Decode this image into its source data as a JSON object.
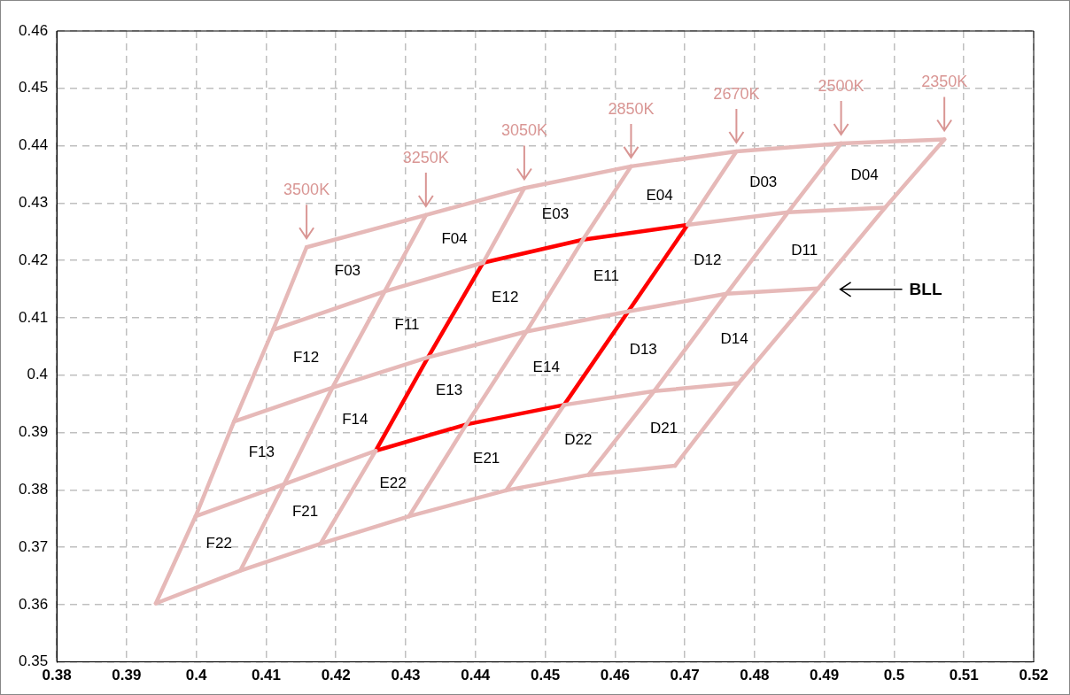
{
  "chart_data": {
    "type": "line",
    "xlim": [
      0.38,
      0.52
    ],
    "ylim": [
      0.35,
      0.46
    ],
    "xticks": [
      0.38,
      0.39,
      0.4,
      0.41,
      0.42,
      0.43,
      0.44,
      0.45,
      0.46,
      0.47,
      0.48,
      0.49,
      0.5,
      0.51,
      0.52
    ],
    "yticks": [
      0.35,
      0.36,
      0.37,
      0.38,
      0.39,
      0.4,
      0.41,
      0.42,
      0.43,
      0.44,
      0.45,
      0.46
    ],
    "grid": true,
    "legend": false,
    "marker": "none",
    "line_style": "solid",
    "series": [
      {
        "color": "#e6b9b8",
        "x": [
          0.4158,
          0.4329,
          0.447,
          0.4623,
          0.4774,
          0.4924,
          0.5072
        ],
        "values": [
          0.4223,
          0.4279,
          0.4326,
          0.4364,
          0.439,
          0.4404,
          0.4411
        ]
      },
      {
        "color": "#e6b9b8",
        "x": [
          0.411,
          0.427,
          0.4411,
          0.4554,
          0.4704,
          0.4848,
          0.4987
        ],
        "values": [
          0.4079,
          0.4146,
          0.4196,
          null,
          0.4262,
          0.4284,
          0.4292
        ]
      },
      {
        "color": "#e6b9b8",
        "x": [
          0.4054,
          0.4195,
          0.4332,
          0.4473,
          0.4619,
          0.476,
          0.4891
        ],
        "values": [
          0.3919,
          0.3978,
          0.4031,
          0.4076,
          0.4111,
          0.4142,
          0.4151
        ]
      },
      {
        "color": "#e6b9b8",
        "x": [
          0.3999,
          0.4126,
          0.4257,
          0.4387,
          0.4527,
          0.4656,
          0.4777
        ],
        "values": [
          0.3754,
          0.381,
          0.3868,
          null,
          0.3948,
          0.3972,
          0.3986
        ]
      },
      {
        "color": "#e6b9b8",
        "x": [
          0.3942,
          0.4063,
          0.4178,
          0.4305,
          0.4444,
          0.4562,
          0.4686
        ],
        "values": [
          0.3602,
          0.3659,
          0.3706,
          0.3754,
          0.3799,
          0.3826,
          0.3842
        ]
      },
      {
        "color": "#e6b9b8",
        "x": [
          0.4158,
          0.411,
          0.4054,
          0.3999,
          0.3942
        ],
        "values": [
          0.4223,
          0.4079,
          0.3919,
          0.3754,
          0.3602
        ]
      },
      {
        "color": "#e6b9b8",
        "x": [
          0.4329,
          0.427,
          0.4195,
          0.4126,
          0.4063
        ],
        "values": [
          0.4279,
          0.4146,
          0.3978,
          0.381,
          0.3659
        ]
      },
      {
        "color": "#e6b9b8",
        "x": [
          0.447,
          0.4411,
          0.4332,
          0.4257,
          0.4178
        ],
        "values": [
          0.4326,
          0.4196,
          null,
          0.3868,
          0.3706
        ]
      },
      {
        "color": "#e6b9b8",
        "x": [
          0.4623,
          0.4554,
          0.4473,
          0.4387,
          0.4305
        ],
        "values": [
          0.4364,
          0.4236,
          0.4076,
          0.3914,
          0.3754
        ]
      },
      {
        "color": "#e6b9b8",
        "x": [
          0.4774,
          0.4704,
          0.4619,
          0.4527,
          0.4444
        ],
        "values": [
          0.439,
          0.4262,
          null,
          0.3948,
          0.3799
        ]
      },
      {
        "color": "#e6b9b8",
        "x": [
          0.4924,
          0.4848,
          0.476,
          0.4656,
          0.4562
        ],
        "values": [
          0.4404,
          0.4284,
          0.4142,
          0.3972,
          0.3826
        ]
      },
      {
        "color": "#e6b9b8",
        "x": [
          0.5072,
          0.4987,
          0.4891,
          0.4777,
          0.4686
        ],
        "values": [
          0.4411,
          0.4292,
          0.4151,
          0.3986,
          0.3842
        ]
      },
      {
        "color": "#ff0000",
        "x": [
          0.4411,
          0.4554,
          0.4704
        ],
        "values": [
          0.4196,
          0.4236,
          0.4262
        ]
      },
      {
        "color": "#ff0000",
        "x": [
          0.4704,
          0.4619,
          0.4527
        ],
        "values": [
          0.4262,
          0.4111,
          0.3948
        ]
      },
      {
        "color": "#ff0000",
        "x": [
          0.4257,
          0.4387,
          0.4527
        ],
        "values": [
          0.3868,
          0.3914,
          0.3948
        ]
      },
      {
        "color": "#ff0000",
        "x": [
          0.4411,
          0.4332,
          0.4257
        ],
        "values": [
          0.4196,
          0.4031,
          0.3868
        ]
      }
    ],
    "annotations": [
      "3500K",
      "3250K",
      "3050K",
      "2850K",
      "2670K",
      "2500K",
      "2350K",
      "F03",
      "F04",
      "E03",
      "E04",
      "D03",
      "D04",
      "F12",
      "F11",
      "E12",
      "E11",
      "D12",
      "D11",
      "F13",
      "F14",
      "E13",
      "E14",
      "D13",
      "D14",
      "F22",
      "F21",
      "E22",
      "E21",
      "D22",
      "D21",
      "BLL"
    ]
  }
}
